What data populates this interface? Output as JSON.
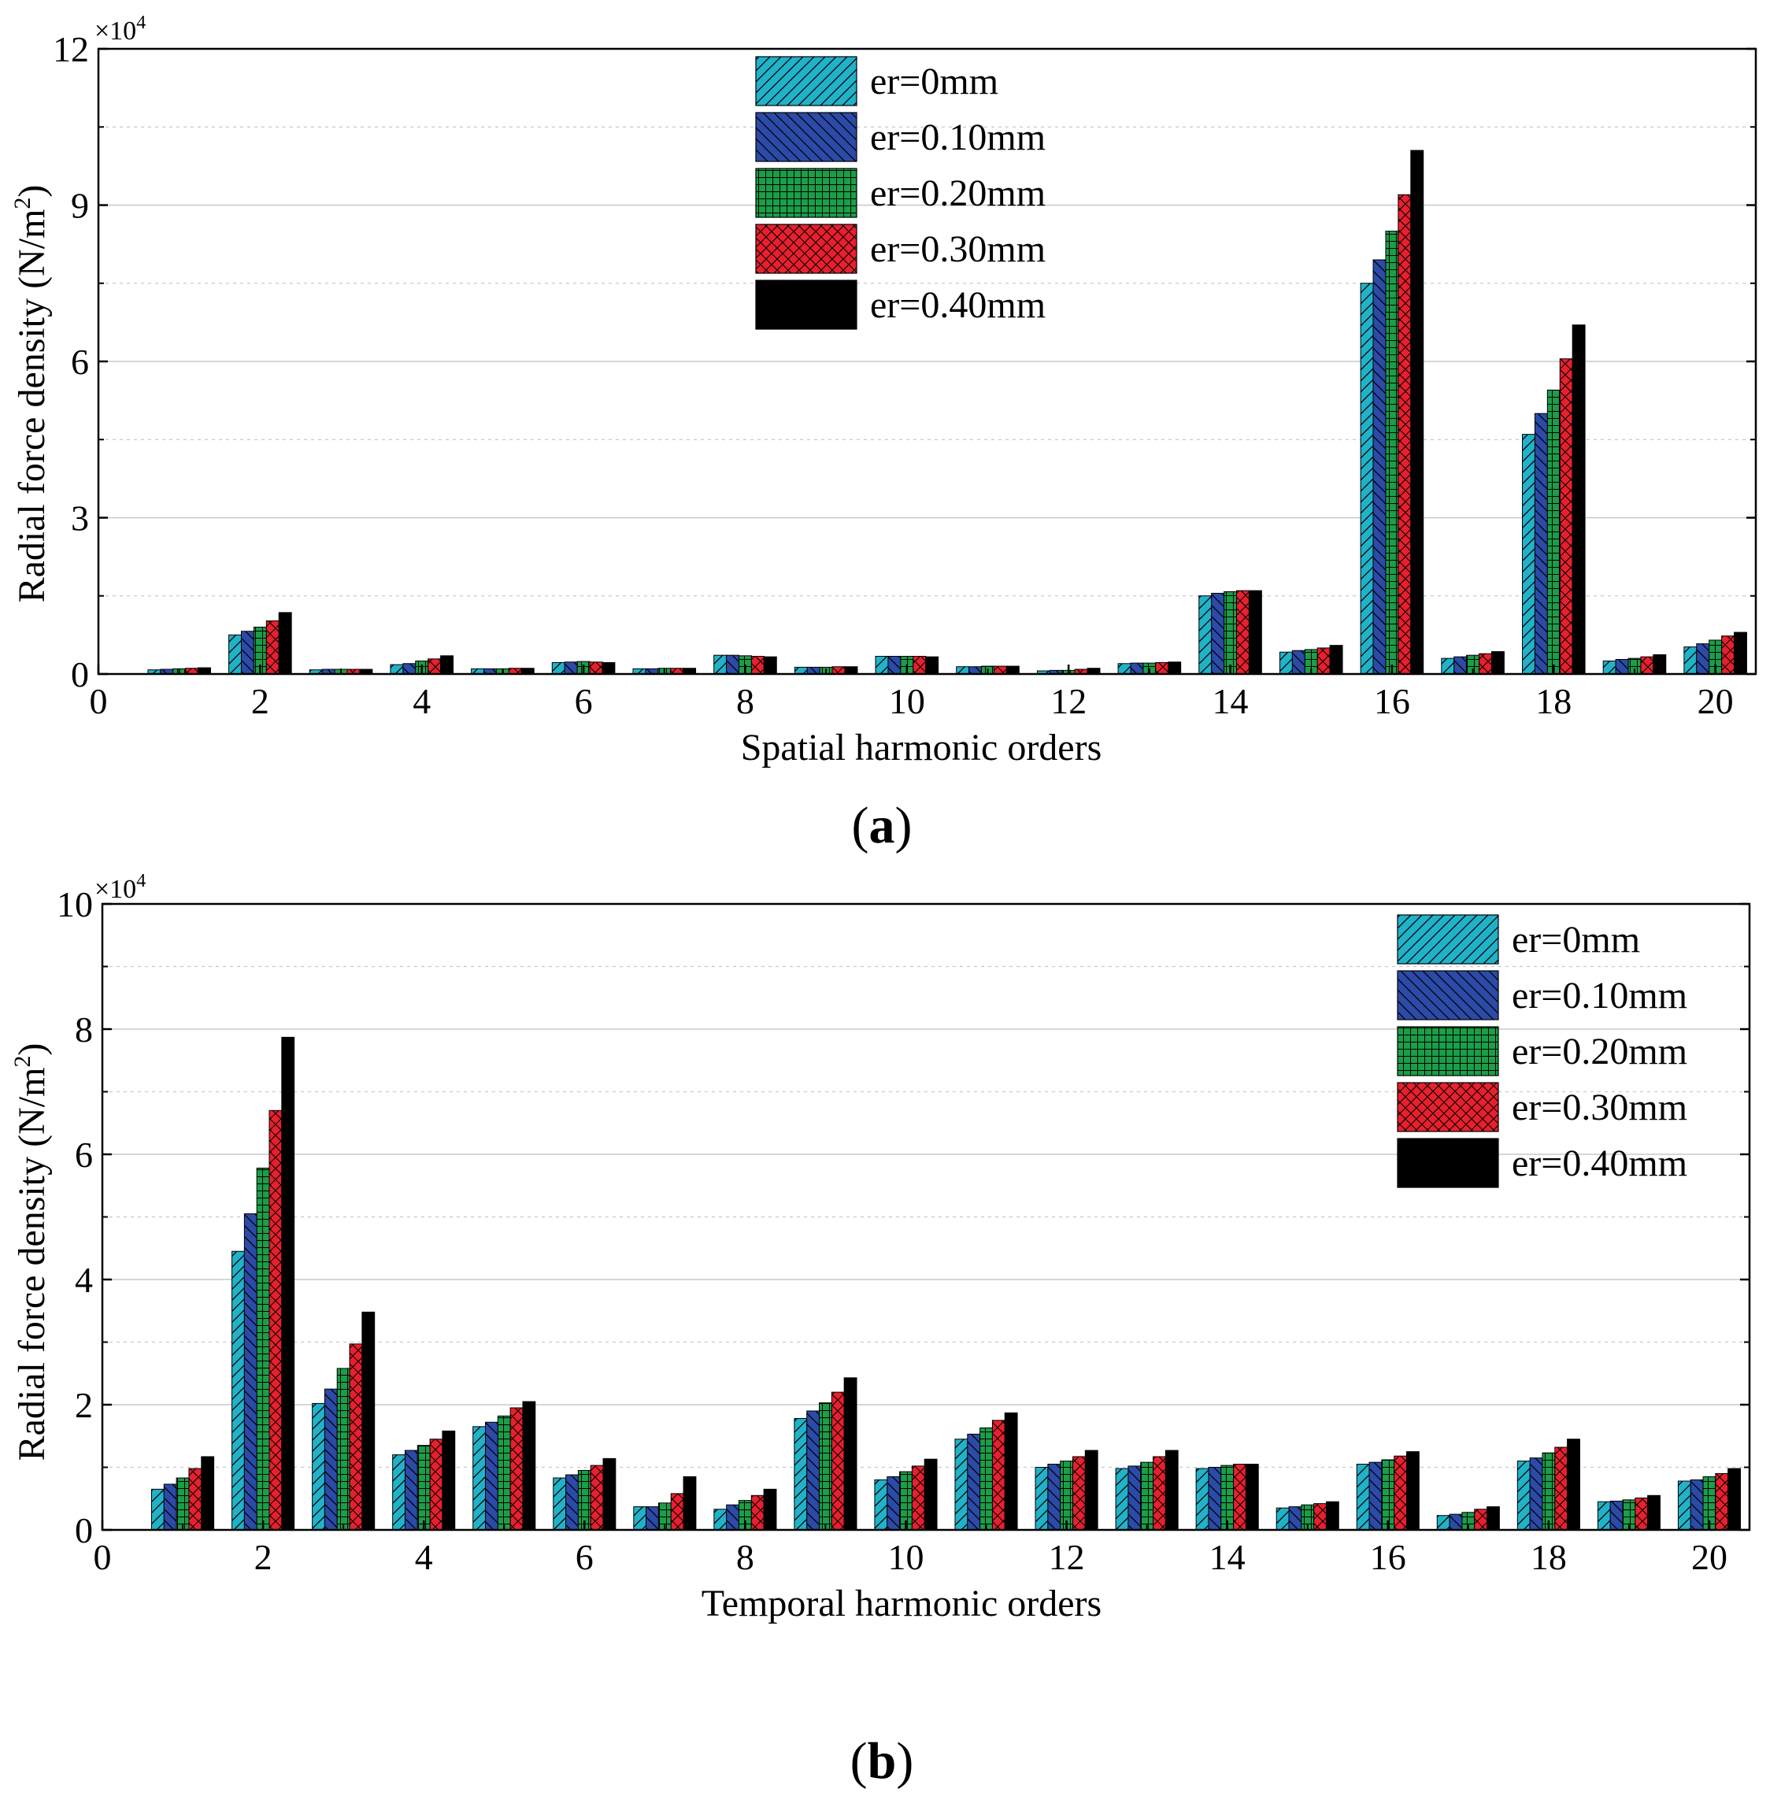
{
  "panel_labels": [
    "a",
    "b"
  ],
  "colors": {
    "series": [
      "#20b2c8",
      "#2c4aa8",
      "#1a9e48",
      "#e8202e",
      "#000000"
    ],
    "grid": "#c8c8c8",
    "axis": "#000000"
  },
  "chart_data": [
    {
      "type": "bar",
      "title": "",
      "panel": "(a)",
      "xlabel": "Spatial harmonic orders",
      "ylabel": "Radial force density (N/m",
      "ylabel_sup": "2",
      "ylabel_close": ")",
      "scale_label": "×10",
      "scale_exp": "4",
      "xlim": [
        0,
        20.5
      ],
      "ylim": [
        0,
        12
      ],
      "yticks": [
        0,
        3,
        6,
        9,
        12
      ],
      "xticks": [
        0,
        2,
        4,
        6,
        8,
        10,
        12,
        14,
        16,
        18,
        20
      ],
      "categories": [
        1,
        2,
        3,
        4,
        5,
        6,
        7,
        8,
        9,
        10,
        11,
        12,
        13,
        14,
        15,
        16,
        17,
        18,
        19,
        20
      ],
      "legend_position": "top-center",
      "series": [
        {
          "name": "er=0mm",
          "values": [
            0.08,
            0.75,
            0.08,
            0.18,
            0.1,
            0.22,
            0.1,
            0.36,
            0.13,
            0.34,
            0.14,
            0.06,
            0.2,
            1.5,
            0.42,
            7.5,
            0.3,
            4.6,
            0.25,
            0.52
          ]
        },
        {
          "name": "er=0.10mm",
          "values": [
            0.09,
            0.82,
            0.09,
            0.2,
            0.1,
            0.23,
            0.1,
            0.36,
            0.13,
            0.34,
            0.14,
            0.07,
            0.21,
            1.55,
            0.45,
            7.95,
            0.33,
            5.0,
            0.28,
            0.58
          ]
        },
        {
          "name": "er=0.20mm",
          "values": [
            0.1,
            0.9,
            0.09,
            0.25,
            0.1,
            0.24,
            0.11,
            0.35,
            0.13,
            0.34,
            0.15,
            0.07,
            0.21,
            1.58,
            0.47,
            8.5,
            0.36,
            5.45,
            0.3,
            0.65
          ]
        },
        {
          "name": "er=0.30mm",
          "values": [
            0.11,
            1.02,
            0.09,
            0.29,
            0.11,
            0.23,
            0.11,
            0.34,
            0.14,
            0.34,
            0.15,
            0.09,
            0.22,
            1.6,
            0.5,
            9.2,
            0.39,
            6.05,
            0.33,
            0.73
          ]
        },
        {
          "name": "er=0.40mm",
          "values": [
            0.12,
            1.18,
            0.09,
            0.35,
            0.11,
            0.22,
            0.11,
            0.33,
            0.14,
            0.33,
            0.15,
            0.11,
            0.23,
            1.6,
            0.55,
            10.05,
            0.43,
            6.7,
            0.37,
            0.8
          ]
        }
      ]
    },
    {
      "type": "bar",
      "title": "",
      "panel": "(b)",
      "xlabel": "Temporal harmonic orders",
      "ylabel": "Radial force density (N/m",
      "ylabel_sup": "2",
      "ylabel_close": ")",
      "scale_label": "×10",
      "scale_exp": "4",
      "xlim": [
        0,
        20.5
      ],
      "ylim": [
        0,
        10
      ],
      "yticks": [
        0,
        2,
        4,
        6,
        8,
        10
      ],
      "xticks": [
        0,
        2,
        4,
        6,
        8,
        10,
        12,
        14,
        16,
        18,
        20
      ],
      "categories": [
        1,
        2,
        3,
        4,
        5,
        6,
        7,
        8,
        9,
        10,
        11,
        12,
        13,
        14,
        15,
        16,
        17,
        18,
        19,
        20
      ],
      "legend_position": "top-right",
      "series": [
        {
          "name": "er=0mm",
          "values": [
            0.65,
            4.45,
            2.02,
            1.2,
            1.65,
            0.83,
            0.37,
            0.33,
            1.78,
            0.8,
            1.45,
            1.0,
            0.98,
            0.98,
            0.35,
            1.05,
            0.23,
            1.1,
            0.45,
            0.78
          ]
        },
        {
          "name": "er=0.10mm",
          "values": [
            0.73,
            5.05,
            2.25,
            1.27,
            1.72,
            0.88,
            0.37,
            0.4,
            1.9,
            0.85,
            1.53,
            1.05,
            1.02,
            1.0,
            0.37,
            1.08,
            0.25,
            1.15,
            0.46,
            0.8
          ]
        },
        {
          "name": "er=0.20mm",
          "values": [
            0.83,
            5.78,
            2.58,
            1.35,
            1.82,
            0.95,
            0.43,
            0.47,
            2.03,
            0.93,
            1.63,
            1.1,
            1.08,
            1.03,
            0.4,
            1.12,
            0.28,
            1.23,
            0.48,
            0.85
          ]
        },
        {
          "name": "er=0.30mm",
          "values": [
            0.98,
            6.7,
            2.97,
            1.45,
            1.95,
            1.03,
            0.58,
            0.55,
            2.2,
            1.02,
            1.75,
            1.17,
            1.17,
            1.05,
            0.42,
            1.18,
            0.33,
            1.32,
            0.51,
            0.9
          ]
        },
        {
          "name": "er=0.40mm",
          "values": [
            1.17,
            7.87,
            3.48,
            1.58,
            2.05,
            1.14,
            0.85,
            0.65,
            2.43,
            1.13,
            1.87,
            1.27,
            1.27,
            1.05,
            0.45,
            1.25,
            0.37,
            1.45,
            0.55,
            0.98
          ]
        }
      ]
    }
  ]
}
